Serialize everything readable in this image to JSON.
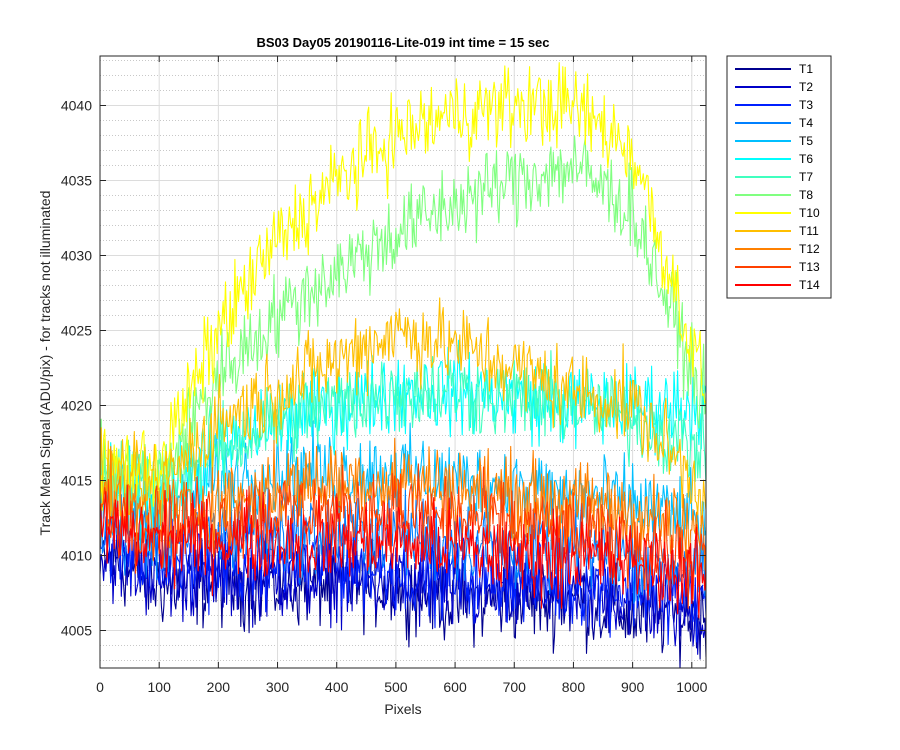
{
  "chart_data": {
    "type": "line",
    "title": "BS03 Day05 20190116-Lite-019 int time = 15 sec",
    "xlabel": "Pixels",
    "ylabel": "Track Mean Signal (ADU/pix) - for tracks not illuminated",
    "xlim": [
      0,
      1024
    ],
    "ylim": [
      4002.5,
      4043.3
    ],
    "x_ticks": [
      0,
      100,
      200,
      300,
      400,
      500,
      600,
      700,
      800,
      900,
      1000
    ],
    "y_ticks": [
      4005,
      4010,
      4015,
      4020,
      4025,
      4030,
      4035,
      4040
    ],
    "x_tick_labels": [
      "0",
      "100",
      "200",
      "300",
      "400",
      "500",
      "600",
      "700",
      "800",
      "900",
      "1000"
    ],
    "y_tick_labels": [
      "4005",
      "4010",
      "4015",
      "4020",
      "4025",
      "4030",
      "4035",
      "4040"
    ],
    "grid": true,
    "minor_grid_y": true,
    "legend_position": "outside-right-top",
    "series_noise_note": "values are approximate envelope of noisy traces",
    "series": [
      {
        "name": "T1",
        "color": "#00008f",
        "x": [
          0,
          100,
          200,
          300,
          400,
          500,
          600,
          700,
          800,
          900,
          1024
        ],
        "values": [
          4010,
          4008,
          4008,
          4008,
          4008,
          4008,
          4007,
          4007,
          4007,
          4006,
          4006
        ]
      },
      {
        "name": "T2",
        "color": "#0000c8",
        "x": [
          0,
          100,
          200,
          300,
          400,
          500,
          600,
          700,
          800,
          900,
          1024
        ],
        "values": [
          4010,
          4008.5,
          4008.5,
          4008.5,
          4008.5,
          4008,
          4007.5,
          4007.5,
          4007.5,
          4007,
          4006
        ]
      },
      {
        "name": "T3",
        "color": "#0020ff",
        "x": [
          0,
          100,
          200,
          300,
          400,
          500,
          600,
          700,
          800,
          900,
          1024
        ],
        "values": [
          4011,
          4009.5,
          4009.5,
          4009.5,
          4009.5,
          4009,
          4008.5,
          4008.5,
          4008,
          4008,
          4007
        ]
      },
      {
        "name": "T4",
        "color": "#0080ff",
        "x": [
          0,
          100,
          200,
          300,
          400,
          500,
          600,
          700,
          800,
          900,
          1024
        ],
        "values": [
          4012,
          4011,
          4011.5,
          4011.5,
          4011.5,
          4011.5,
          4011,
          4010.5,
          4010.5,
          4010,
          4009
        ]
      },
      {
        "name": "T5",
        "color": "#00bfff",
        "x": [
          0,
          100,
          200,
          300,
          400,
          500,
          600,
          700,
          800,
          900,
          1024
        ],
        "values": [
          4014,
          4013,
          4015,
          4015.5,
          4015.5,
          4015.5,
          4015,
          4014.5,
          4014,
          4013.5,
          4012
        ]
      },
      {
        "name": "T6",
        "color": "#00ffff",
        "x": [
          0,
          100,
          200,
          300,
          400,
          500,
          600,
          700,
          800,
          900,
          1024
        ],
        "values": [
          4014.5,
          4014,
          4017,
          4019,
          4020,
          4021,
          4021,
          4020.5,
          4020,
          4020,
          4020
        ]
      },
      {
        "name": "T7",
        "color": "#40ffbf",
        "x": [
          0,
          100,
          200,
          300,
          400,
          500,
          600,
          700,
          800,
          900,
          1024
        ],
        "values": [
          4015,
          4014.5,
          4017,
          4019,
          4020,
          4021,
          4021,
          4020.5,
          4020,
          4019,
          4017
        ]
      },
      {
        "name": "T8",
        "color": "#80ff80",
        "x": [
          0,
          100,
          200,
          300,
          400,
          500,
          600,
          700,
          800,
          900,
          1024
        ],
        "values": [
          4015.5,
          4015,
          4022,
          4026,
          4029,
          4031.5,
          4033.5,
          4035,
          4036,
          4033,
          4020
        ]
      },
      {
        "name": "T10",
        "color": "#ffff00",
        "x": [
          0,
          100,
          200,
          300,
          400,
          500,
          600,
          700,
          800,
          900,
          1024
        ],
        "values": [
          4016,
          4016,
          4025,
          4031,
          4035,
          4038,
          4039.5,
          4040,
          4040,
          4037,
          4021
        ]
      },
      {
        "name": "T11",
        "color": "#ffbf00",
        "x": [
          0,
          100,
          200,
          300,
          400,
          500,
          600,
          700,
          800,
          900,
          1024
        ],
        "values": [
          4015,
          4014.5,
          4019,
          4021,
          4023,
          4025,
          4024,
          4022.5,
          4021,
          4020,
          4014
        ]
      },
      {
        "name": "T12",
        "color": "#ff8000",
        "x": [
          0,
          100,
          200,
          300,
          400,
          500,
          600,
          700,
          800,
          900,
          1024
        ],
        "values": [
          4013.5,
          4012.5,
          4013.5,
          4014.5,
          4015,
          4015,
          4014.5,
          4014,
          4013.5,
          4013,
          4011
        ]
      },
      {
        "name": "T13",
        "color": "#ff4000",
        "x": [
          0,
          100,
          200,
          300,
          400,
          500,
          600,
          700,
          800,
          900,
          1024
        ],
        "values": [
          4013,
          4012,
          4012.5,
          4013,
          4013,
          4013,
          4012.5,
          4012,
          4011.5,
          4011,
          4009.5
        ]
      },
      {
        "name": "T14",
        "color": "#ff0000",
        "x": [
          0,
          100,
          200,
          300,
          400,
          500,
          600,
          700,
          800,
          900,
          1024
        ],
        "values": [
          4012,
          4011,
          4011,
          4011,
          4011,
          4011,
          4010.5,
          4010,
          4010,
          4009.5,
          4008.5
        ]
      }
    ]
  }
}
